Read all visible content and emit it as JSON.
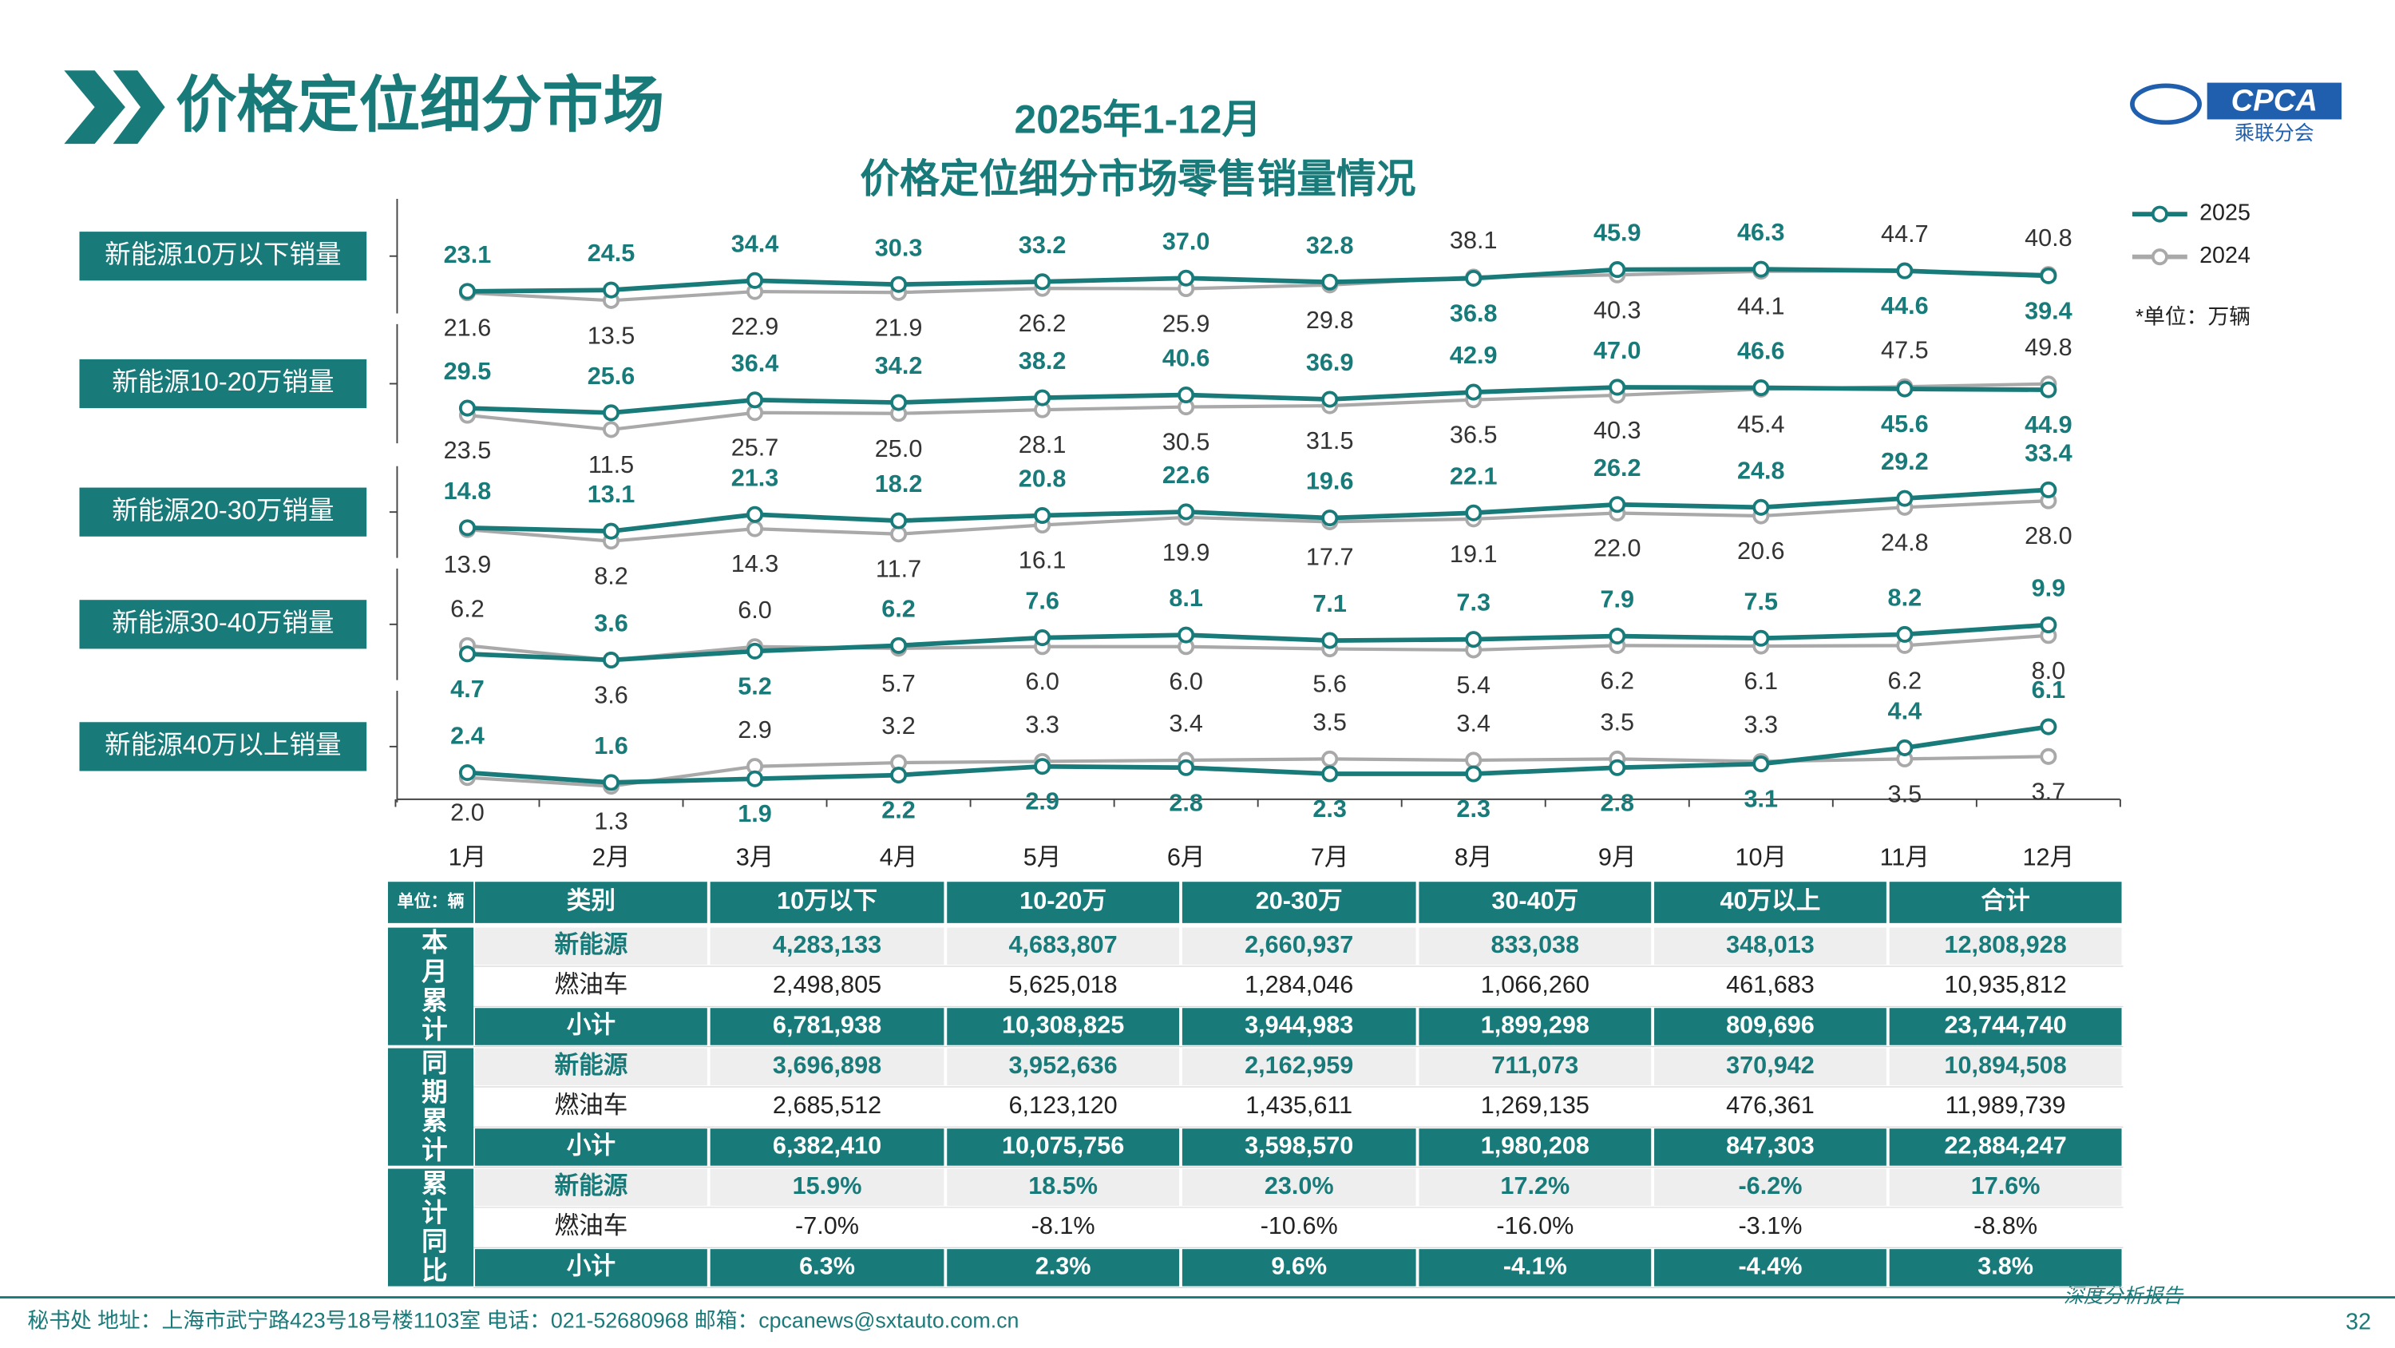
{
  "header": {
    "title": "价格定位细分市场",
    "logo_text": "CPCA",
    "logo_subtext": "乘联分会"
  },
  "chart_data": {
    "type": "line",
    "title": "2025年1-12月",
    "subtitle": "价格定位细分市场零售销量情况",
    "unit_note": "*单位：万辆",
    "categories": [
      "1月",
      "2月",
      "3月",
      "4月",
      "5月",
      "6月",
      "7月",
      "8月",
      "9月",
      "10月",
      "11月",
      "12月"
    ],
    "legend": [
      {
        "name": "2025",
        "color": "#197a7a"
      },
      {
        "name": "2024",
        "color": "#a9a9a9"
      }
    ],
    "panels": [
      {
        "label": "新能源10万以下销量",
        "ylim": [
          0,
          120
        ],
        "series": [
          {
            "values": [
              23.1,
              24.5,
              34.4,
              30.3,
              33.2,
              37.0,
              32.8,
              36.8,
              45.9,
              46.3,
              44.6,
              39.4
            ],
            "value_labels": [
              "23.1",
              "24.5",
              "34.4",
              "30.3",
              "33.2",
              "37.0",
              "32.8",
              "36.8",
              "45.9",
              "46.3",
              "44.6",
              "39.4"
            ]
          },
          {
            "values": [
              21.6,
              13.5,
              22.9,
              21.9,
              26.2,
              25.9,
              29.8,
              38.1,
              40.3,
              44.1,
              44.7,
              40.8
            ],
            "value_labels": [
              "21.6",
              "13.5",
              "22.9",
              "21.9",
              "26.2",
              "25.9",
              "29.8",
              "38.1",
              "40.3",
              "44.1",
              "44.7",
              "40.8"
            ]
          }
        ]
      },
      {
        "label": "新能源10-20万销量",
        "ylim": [
          0,
          100
        ],
        "series": [
          {
            "values": [
              29.5,
              25.6,
              36.4,
              34.2,
              38.2,
              40.6,
              36.9,
              42.9,
              47.0,
              46.6,
              45.6,
              44.9
            ],
            "value_labels": [
              "29.5",
              "25.6",
              "36.4",
              "34.2",
              "38.2",
              "40.6",
              "36.9",
              "42.9",
              "47.0",
              "46.6",
              "45.6",
              "44.9"
            ]
          },
          {
            "values": [
              23.5,
              11.5,
              25.7,
              25.0,
              28.1,
              30.5,
              31.5,
              36.5,
              40.3,
              45.4,
              47.5,
              49.8
            ],
            "value_labels": [
              "23.5",
              "11.5",
              "25.7",
              "25.0",
              "28.1",
              "30.5",
              "31.5",
              "36.5",
              "40.3",
              "45.4",
              "47.5",
              "49.8"
            ]
          }
        ]
      },
      {
        "label": "新能源20-30万销量",
        "ylim": [
          0,
          45
        ],
        "series": [
          {
            "values": [
              14.8,
              13.1,
              21.3,
              18.2,
              20.8,
              22.6,
              19.6,
              22.1,
              26.2,
              24.8,
              29.2,
              33.4
            ],
            "value_labels": [
              "14.8",
              "13.1",
              "21.3",
              "18.2",
              "20.8",
              "22.6",
              "19.6",
              "22.1",
              "26.2",
              "24.8",
              "29.2",
              "33.4"
            ]
          },
          {
            "values": [
              13.9,
              8.2,
              14.3,
              11.7,
              16.1,
              19.9,
              17.7,
              19.1,
              22.0,
              20.6,
              24.8,
              28.0
            ],
            "value_labels": [
              "13.9",
              "8.2",
              "14.3",
              "11.7",
              "16.1",
              "19.9",
              "17.7",
              "19.1",
              "22.0",
              "20.6",
              "24.8",
              "28.0"
            ]
          }
        ]
      },
      {
        "label": "新能源30-40万销量",
        "ylim": [
          0,
          20
        ],
        "series": [
          {
            "values": [
              4.7,
              3.6,
              5.2,
              6.2,
              7.6,
              8.1,
              7.1,
              7.3,
              7.9,
              7.5,
              8.2,
              9.9
            ],
            "value_labels": [
              "4.7",
              "3.6",
              "5.2",
              "6.2",
              "7.6",
              "8.1",
              "7.1",
              "7.3",
              "7.9",
              "7.5",
              "8.2",
              "9.9"
            ]
          },
          {
            "values": [
              6.2,
              3.6,
              6.0,
              5.7,
              6.0,
              6.0,
              5.6,
              5.4,
              6.2,
              6.1,
              6.2,
              8.0
            ],
            "value_labels": [
              "6.2",
              "3.6",
              "6.0",
              "5.7",
              "6.0",
              "6.0",
              "5.6",
              "5.4",
              "6.2",
              "6.1",
              "6.2",
              "8.0"
            ]
          }
        ]
      },
      {
        "label": "新能源40万以上销量",
        "ylim": [
          0,
          9
        ],
        "series": [
          {
            "values": [
              2.4,
              1.6,
              1.9,
              2.2,
              2.9,
              2.8,
              2.3,
              2.3,
              2.8,
              3.1,
              4.4,
              6.1
            ],
            "value_labels": [
              "2.4",
              "1.6",
              "1.9",
              "2.2",
              "2.9",
              "2.8",
              "2.3",
              "2.3",
              "2.8",
              "3.1",
              "4.4",
              "6.1"
            ]
          },
          {
            "values": [
              2.0,
              1.3,
              2.9,
              3.2,
              3.3,
              3.4,
              3.5,
              3.4,
              3.5,
              3.3,
              3.5,
              3.7
            ],
            "value_labels": [
              "2.0",
              "1.3",
              "2.9",
              "3.2",
              "3.3",
              "3.4",
              "3.5",
              "3.4",
              "3.5",
              "3.3",
              "3.5",
              "3.7"
            ]
          }
        ]
      }
    ]
  },
  "table": {
    "unit": "单位：辆",
    "header": [
      "类别",
      "10万以下",
      "10-20万",
      "20-30万",
      "30-40万",
      "40万以上",
      "合计"
    ],
    "groups": [
      {
        "label": "本月累计",
        "rows": [
          [
            "新能源",
            "4,283,133",
            "4,683,807",
            "2,660,937",
            "833,038",
            "348,013",
            "12,808,928"
          ],
          [
            "燃油车",
            "2,498,805",
            "5,625,018",
            "1,284,046",
            "1,066,260",
            "461,683",
            "10,935,812"
          ],
          [
            "小计",
            "6,781,938",
            "10,308,825",
            "3,944,983",
            "1,899,298",
            "809,696",
            "23,744,740"
          ]
        ]
      },
      {
        "label": "同期累计",
        "rows": [
          [
            "新能源",
            "3,696,898",
            "3,952,636",
            "2,162,959",
            "711,073",
            "370,942",
            "10,894,508"
          ],
          [
            "燃油车",
            "2,685,512",
            "6,123,120",
            "1,435,611",
            "1,269,135",
            "476,361",
            "11,989,739"
          ],
          [
            "小计",
            "6,382,410",
            "10,075,756",
            "3,598,570",
            "1,980,208",
            "847,303",
            "22,884,247"
          ]
        ]
      },
      {
        "label": "累计同比",
        "rows": [
          [
            "新能源",
            "15.9%",
            "18.5%",
            "23.0%",
            "17.2%",
            "-6.2%",
            "17.6%"
          ],
          [
            "燃油车",
            "-7.0%",
            "-8.1%",
            "-10.6%",
            "-16.0%",
            "-3.1%",
            "-8.8%"
          ],
          [
            "小计",
            "6.3%",
            "2.3%",
            "9.6%",
            "-4.1%",
            "-4.4%",
            "3.8%"
          ]
        ]
      }
    ]
  },
  "footer": {
    "contact": "秘书处   地址：上海市武宁路423号18号楼1103室  电话：021-52680968   邮箱：cpcanews@sxtauto.com.cn",
    "report": "深度分析报告",
    "page": "32"
  }
}
